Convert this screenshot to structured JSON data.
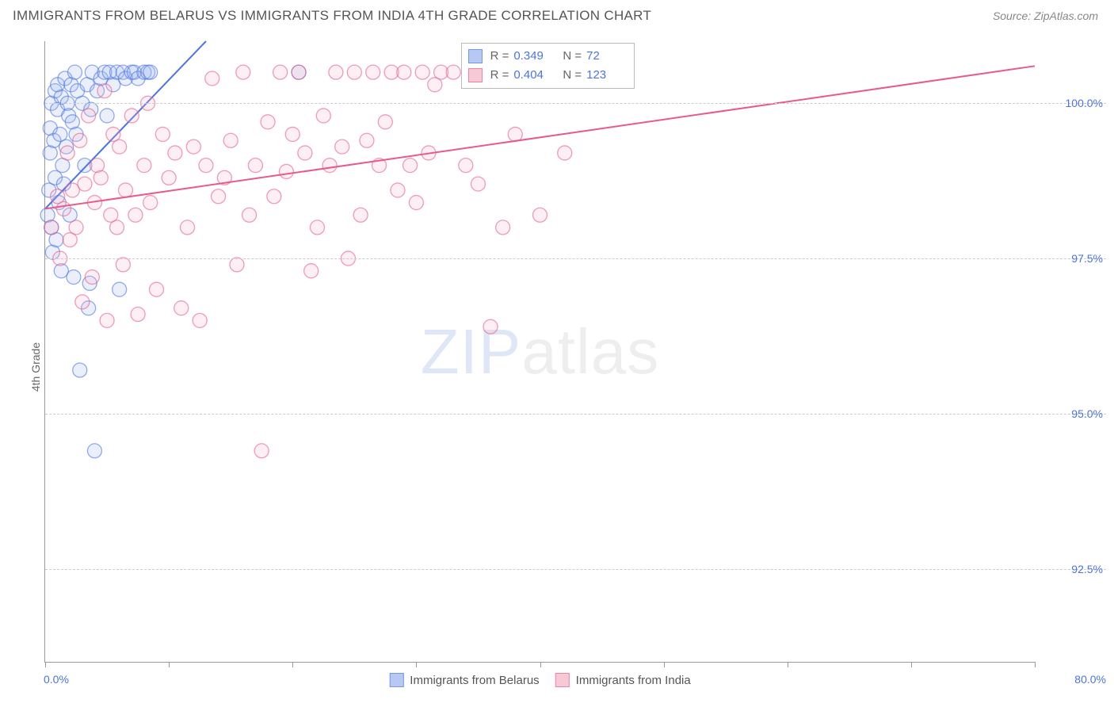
{
  "title": "IMMIGRANTS FROM BELARUS VS IMMIGRANTS FROM INDIA 4TH GRADE CORRELATION CHART",
  "source": "Source: ZipAtlas.com",
  "watermark": {
    "prefix": "ZIP",
    "suffix": "atlas"
  },
  "y_axis_label": "4th Grade",
  "chart": {
    "type": "scatter",
    "xlim": [
      0,
      80
    ],
    "ylim": [
      91,
      101
    ],
    "x_ticks": [
      0,
      10,
      20,
      30,
      40,
      50,
      60,
      70,
      80
    ],
    "x_tick_labels": {
      "min": "0.0%",
      "max": "80.0%"
    },
    "y_grid": [
      92.5,
      95.0,
      97.5,
      100.0
    ],
    "y_tick_labels": [
      "92.5%",
      "95.0%",
      "97.5%",
      "100.0%"
    ],
    "background_color": "#ffffff",
    "grid_color": "#cccccc",
    "axis_color": "#999999",
    "tick_label_color": "#4a74e8",
    "marker_radius": 9,
    "marker_fill_opacity": 0.22,
    "marker_stroke_width": 1.3,
    "line_width": 2
  },
  "series": [
    {
      "name": "Immigrants from Belarus",
      "color_stroke": "#4a74e8",
      "color_fill": "#9fb8ef",
      "R": "0.349",
      "N": "72",
      "trend": {
        "x1": 0,
        "y1": 98.3,
        "x2": 13,
        "y2": 101
      },
      "points": [
        [
          0.2,
          98.2
        ],
        [
          0.3,
          98.6
        ],
        [
          0.4,
          99.2
        ],
        [
          0.4,
          99.6
        ],
        [
          0.5,
          100.0
        ],
        [
          0.5,
          98.0
        ],
        [
          0.6,
          97.6
        ],
        [
          0.7,
          99.4
        ],
        [
          0.8,
          100.2
        ],
        [
          0.8,
          98.8
        ],
        [
          0.9,
          97.8
        ],
        [
          1.0,
          99.9
        ],
        [
          1.0,
          100.3
        ],
        [
          1.1,
          98.4
        ],
        [
          1.2,
          99.5
        ],
        [
          1.3,
          100.1
        ],
        [
          1.3,
          97.3
        ],
        [
          1.4,
          99.0
        ],
        [
          1.5,
          98.7
        ],
        [
          1.6,
          100.4
        ],
        [
          1.7,
          99.3
        ],
        [
          1.8,
          100.0
        ],
        [
          1.9,
          99.8
        ],
        [
          2.0,
          98.2
        ],
        [
          2.1,
          100.3
        ],
        [
          2.2,
          99.7
        ],
        [
          2.3,
          97.2
        ],
        [
          2.4,
          100.5
        ],
        [
          2.5,
          99.5
        ],
        [
          2.6,
          100.2
        ],
        [
          2.8,
          95.7
        ],
        [
          3.0,
          100.0
        ],
        [
          3.2,
          99.0
        ],
        [
          3.4,
          100.3
        ],
        [
          3.5,
          96.7
        ],
        [
          3.6,
          97.1
        ],
        [
          3.7,
          99.9
        ],
        [
          3.8,
          100.5
        ],
        [
          4.0,
          94.4
        ],
        [
          4.2,
          100.2
        ],
        [
          4.5,
          100.4
        ],
        [
          4.8,
          100.5
        ],
        [
          5.0,
          99.8
        ],
        [
          5.2,
          100.5
        ],
        [
          5.5,
          100.3
        ],
        [
          5.8,
          100.5
        ],
        [
          6.0,
          97.0
        ],
        [
          6.3,
          100.5
        ],
        [
          6.5,
          100.4
        ],
        [
          7.0,
          100.5
        ],
        [
          7.2,
          100.5
        ],
        [
          7.5,
          100.4
        ],
        [
          8.0,
          100.5
        ],
        [
          8.3,
          100.5
        ],
        [
          8.5,
          100.5
        ],
        [
          20.5,
          100.5
        ]
      ]
    },
    {
      "name": "Immigrants from India",
      "color_stroke": "#e85b88",
      "color_fill": "#f5b6c9",
      "R": "0.404",
      "N": "123",
      "trend": {
        "x1": 0,
        "y1": 98.3,
        "x2": 80,
        "y2": 100.6
      },
      "points": [
        [
          0.5,
          98.0
        ],
        [
          1.0,
          98.5
        ],
        [
          1.2,
          97.5
        ],
        [
          1.5,
          98.3
        ],
        [
          1.8,
          99.2
        ],
        [
          2.0,
          97.8
        ],
        [
          2.2,
          98.6
        ],
        [
          2.5,
          98.0
        ],
        [
          2.8,
          99.4
        ],
        [
          3.0,
          96.8
        ],
        [
          3.2,
          98.7
        ],
        [
          3.5,
          99.8
        ],
        [
          3.8,
          97.2
        ],
        [
          4.0,
          98.4
        ],
        [
          4.2,
          99.0
        ],
        [
          4.5,
          98.8
        ],
        [
          4.8,
          100.2
        ],
        [
          5.0,
          96.5
        ],
        [
          5.3,
          98.2
        ],
        [
          5.5,
          99.5
        ],
        [
          5.8,
          98.0
        ],
        [
          6.0,
          99.3
        ],
        [
          6.3,
          97.4
        ],
        [
          6.5,
          98.6
        ],
        [
          7.0,
          99.8
        ],
        [
          7.3,
          98.2
        ],
        [
          7.5,
          96.6
        ],
        [
          8.0,
          99.0
        ],
        [
          8.3,
          100.0
        ],
        [
          8.5,
          98.4
        ],
        [
          9.0,
          97.0
        ],
        [
          9.5,
          99.5
        ],
        [
          10.0,
          98.8
        ],
        [
          10.5,
          99.2
        ],
        [
          11.0,
          96.7
        ],
        [
          11.5,
          98.0
        ],
        [
          12.0,
          99.3
        ],
        [
          12.5,
          96.5
        ],
        [
          13.0,
          99.0
        ],
        [
          13.5,
          100.4
        ],
        [
          14.0,
          98.5
        ],
        [
          14.5,
          98.8
        ],
        [
          15.0,
          99.4
        ],
        [
          15.5,
          97.4
        ],
        [
          16.0,
          100.5
        ],
        [
          16.5,
          98.2
        ],
        [
          17.0,
          99.0
        ],
        [
          17.5,
          94.4
        ],
        [
          18.0,
          99.7
        ],
        [
          18.5,
          98.5
        ],
        [
          19.0,
          100.5
        ],
        [
          19.5,
          98.9
        ],
        [
          20.0,
          99.5
        ],
        [
          20.5,
          100.5
        ],
        [
          21.0,
          99.2
        ],
        [
          21.5,
          97.3
        ],
        [
          22.0,
          98.0
        ],
        [
          22.5,
          99.8
        ],
        [
          23.0,
          99.0
        ],
        [
          23.5,
          100.5
        ],
        [
          24.0,
          99.3
        ],
        [
          24.5,
          97.5
        ],
        [
          25.0,
          100.5
        ],
        [
          25.5,
          98.2
        ],
        [
          26.0,
          99.4
        ],
        [
          26.5,
          100.5
        ],
        [
          27.0,
          99.0
        ],
        [
          27.5,
          99.7
        ],
        [
          28.0,
          100.5
        ],
        [
          28.5,
          98.6
        ],
        [
          29.0,
          100.5
        ],
        [
          29.5,
          99.0
        ],
        [
          30.0,
          98.4
        ],
        [
          30.5,
          100.5
        ],
        [
          31.0,
          99.2
        ],
        [
          31.5,
          100.3
        ],
        [
          32.0,
          100.5
        ],
        [
          33.0,
          100.5
        ],
        [
          34.0,
          99.0
        ],
        [
          35.0,
          98.7
        ],
        [
          36.0,
          96.4
        ],
        [
          37.0,
          98.0
        ],
        [
          38.0,
          99.5
        ],
        [
          39.0,
          100.5
        ],
        [
          40.0,
          98.2
        ],
        [
          42.0,
          99.2
        ]
      ]
    }
  ],
  "legend_top_labels": {
    "R": "R =",
    "N": "N ="
  },
  "legend_bottom": [
    {
      "label": "Immigrants from Belarus",
      "series": 0
    },
    {
      "label": "Immigrants from India",
      "series": 1
    }
  ]
}
